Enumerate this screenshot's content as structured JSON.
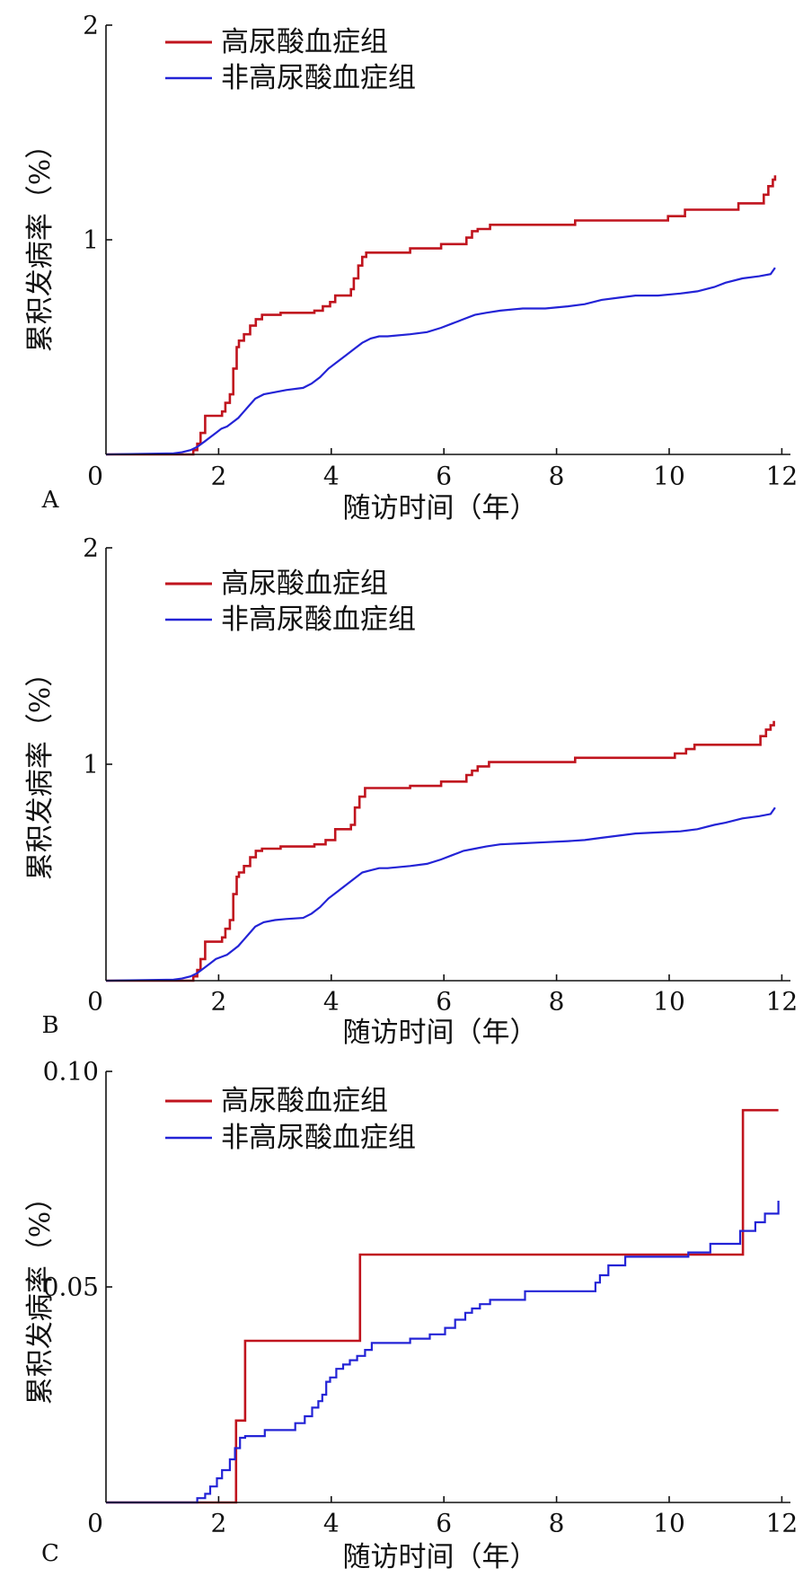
{
  "chart_data": [
    {
      "type": "line",
      "panel_label": "A",
      "title": "",
      "xlabel": "随访时间（年）",
      "ylabel": "累积发病率（%）",
      "xlim": [
        0,
        12
      ],
      "ylim": [
        0,
        2
      ],
      "xticks": [
        0,
        2,
        4,
        6,
        8,
        10,
        12
      ],
      "xtick_labels": [
        "0",
        "2",
        "4",
        "6",
        "8",
        "10",
        "12"
      ],
      "yticks": [
        1,
        2
      ],
      "ytick_labels": [
        "1",
        "2"
      ],
      "grid": false,
      "legend_position": "top-left",
      "series": [
        {
          "name": "高尿酸血症组",
          "color": "#c0141e",
          "interpolation": "step",
          "x": [
            0,
            1.55,
            1.62,
            1.68,
            1.76,
            2.06,
            2.12,
            2.2,
            2.26,
            2.32,
            2.36,
            2.45,
            2.56,
            2.66,
            2.77,
            3.1,
            3.7,
            3.85,
            3.98,
            4.07,
            4.35,
            4.4,
            4.48,
            4.55,
            4.62,
            5.4,
            5.95,
            6.4,
            6.5,
            6.6,
            6.82,
            8.33,
            9.98,
            10.28,
            11.23,
            11.68,
            11.76,
            11.84,
            11.88
          ],
          "y": [
            0,
            0.02,
            0.05,
            0.1,
            0.18,
            0.2,
            0.24,
            0.28,
            0.4,
            0.5,
            0.53,
            0.56,
            0.6,
            0.63,
            0.65,
            0.66,
            0.67,
            0.69,
            0.71,
            0.74,
            0.77,
            0.82,
            0.88,
            0.92,
            0.94,
            0.96,
            0.98,
            1.01,
            1.04,
            1.05,
            1.07,
            1.09,
            1.11,
            1.14,
            1.17,
            1.21,
            1.25,
            1.28,
            1.3
          ]
        },
        {
          "name": "非高尿酸血症组",
          "color": "#2323d6",
          "interpolation": "linear",
          "x": [
            0,
            1.2,
            1.35,
            1.5,
            1.62,
            1.75,
            1.85,
            1.95,
            2.05,
            2.15,
            2.25,
            2.35,
            2.45,
            2.55,
            2.65,
            2.8,
            3.0,
            3.2,
            3.5,
            3.65,
            3.8,
            3.95,
            4.1,
            4.25,
            4.4,
            4.55,
            4.7,
            4.85,
            5.0,
            5.4,
            5.7,
            5.95,
            6.15,
            6.35,
            6.55,
            6.75,
            7.0,
            7.4,
            7.8,
            8.2,
            8.5,
            8.8,
            9.1,
            9.4,
            9.8,
            10.2,
            10.5,
            10.8,
            11.0,
            11.3,
            11.6,
            11.8,
            11.88
          ],
          "y": [
            0,
            0.005,
            0.01,
            0.02,
            0.035,
            0.06,
            0.08,
            0.1,
            0.12,
            0.13,
            0.15,
            0.17,
            0.2,
            0.23,
            0.26,
            0.28,
            0.29,
            0.3,
            0.31,
            0.33,
            0.36,
            0.4,
            0.43,
            0.46,
            0.49,
            0.52,
            0.54,
            0.55,
            0.55,
            0.56,
            0.57,
            0.59,
            0.61,
            0.63,
            0.65,
            0.66,
            0.67,
            0.68,
            0.68,
            0.69,
            0.7,
            0.72,
            0.73,
            0.74,
            0.74,
            0.75,
            0.76,
            0.78,
            0.8,
            0.82,
            0.83,
            0.84,
            0.87
          ]
        }
      ]
    },
    {
      "type": "line",
      "panel_label": "B",
      "title": "",
      "xlabel": "随访时间（年）",
      "ylabel": "累积发病率（%）",
      "xlim": [
        0,
        12
      ],
      "ylim": [
        0,
        2
      ],
      "xticks": [
        0,
        2,
        4,
        6,
        8,
        10,
        12
      ],
      "xtick_labels": [
        "0",
        "2",
        "4",
        "6",
        "8",
        "10",
        "12"
      ],
      "yticks": [
        1,
        2
      ],
      "ytick_labels": [
        "1",
        "2"
      ],
      "grid": false,
      "legend_position": "top-left",
      "series": [
        {
          "name": "高尿酸血症组",
          "color": "#c0141e",
          "interpolation": "step",
          "x": [
            0,
            1.55,
            1.62,
            1.68,
            1.76,
            2.06,
            2.12,
            2.2,
            2.26,
            2.32,
            2.36,
            2.45,
            2.56,
            2.66,
            2.77,
            3.1,
            3.7,
            3.9,
            4.07,
            4.35,
            4.42,
            4.5,
            4.6,
            5.4,
            5.95,
            6.4,
            6.5,
            6.6,
            6.8,
            8.33,
            10.1,
            10.3,
            10.45,
            11.62,
            11.72,
            11.8,
            11.86
          ],
          "y": [
            0,
            0.02,
            0.05,
            0.1,
            0.18,
            0.2,
            0.24,
            0.28,
            0.4,
            0.48,
            0.5,
            0.53,
            0.57,
            0.6,
            0.61,
            0.62,
            0.63,
            0.65,
            0.7,
            0.72,
            0.8,
            0.85,
            0.89,
            0.9,
            0.92,
            0.95,
            0.97,
            0.99,
            1.01,
            1.03,
            1.05,
            1.07,
            1.09,
            1.13,
            1.16,
            1.18,
            1.2
          ]
        },
        {
          "name": "非高尿酸血症组",
          "color": "#2323d6",
          "interpolation": "linear",
          "x": [
            0,
            1.2,
            1.35,
            1.5,
            1.62,
            1.75,
            1.85,
            1.95,
            2.05,
            2.15,
            2.25,
            2.35,
            2.45,
            2.55,
            2.65,
            2.8,
            3.0,
            3.2,
            3.5,
            3.65,
            3.8,
            3.95,
            4.1,
            4.25,
            4.4,
            4.55,
            4.7,
            4.85,
            5.0,
            5.4,
            5.7,
            5.95,
            6.15,
            6.35,
            6.55,
            6.75,
            7.0,
            7.4,
            7.8,
            8.2,
            8.5,
            8.8,
            9.1,
            9.4,
            9.8,
            10.2,
            10.5,
            10.8,
            11.0,
            11.3,
            11.6,
            11.8,
            11.88
          ],
          "y": [
            0,
            0.005,
            0.01,
            0.02,
            0.035,
            0.06,
            0.08,
            0.1,
            0.11,
            0.12,
            0.14,
            0.16,
            0.19,
            0.22,
            0.25,
            0.27,
            0.28,
            0.285,
            0.29,
            0.31,
            0.34,
            0.38,
            0.41,
            0.44,
            0.47,
            0.5,
            0.51,
            0.52,
            0.52,
            0.53,
            0.54,
            0.56,
            0.58,
            0.6,
            0.61,
            0.62,
            0.63,
            0.635,
            0.64,
            0.645,
            0.65,
            0.66,
            0.67,
            0.68,
            0.685,
            0.69,
            0.7,
            0.72,
            0.73,
            0.75,
            0.76,
            0.77,
            0.8
          ]
        }
      ]
    },
    {
      "type": "line",
      "panel_label": "C",
      "title": "",
      "xlabel": "随访时间（年）",
      "ylabel": "累积发病率（%）",
      "xlim": [
        0,
        12
      ],
      "ylim": [
        0,
        0.1
      ],
      "xticks": [
        0,
        2,
        4,
        6,
        8,
        10,
        12
      ],
      "xtick_labels": [
        "0",
        "2",
        "4",
        "6",
        "8",
        "10",
        "12"
      ],
      "yticks": [
        0.05,
        0.1
      ],
      "ytick_labels": [
        "0.05",
        "0.10"
      ],
      "grid": false,
      "legend_position": "top-left",
      "series": [
        {
          "name": "高尿酸血症组",
          "color": "#c0141e",
          "interpolation": "step",
          "x": [
            0,
            2.31,
            2.47,
            4.51,
            11.31,
            11.94
          ],
          "y": [
            0,
            0.019,
            0.0375,
            0.0575,
            0.091,
            0.091
          ]
        },
        {
          "name": "非高尿酸血症组",
          "color": "#2323d6",
          "interpolation": "step",
          "x": [
            0,
            1.62,
            1.76,
            1.85,
            1.97,
            2.06,
            2.2,
            2.29,
            2.38,
            2.47,
            2.82,
            3.36,
            3.53,
            3.66,
            3.77,
            3.84,
            3.91,
            3.98,
            4.09,
            4.21,
            4.33,
            4.46,
            4.6,
            4.72,
            5.4,
            5.75,
            6.02,
            6.2,
            6.38,
            6.5,
            6.64,
            6.82,
            7.44,
            8.69,
            8.77,
            8.92,
            9.22,
            10.34,
            10.73,
            11.26,
            11.53,
            11.7,
            11.94
          ],
          "y": [
            0,
            0.001,
            0.002,
            0.0037,
            0.0056,
            0.0075,
            0.01,
            0.0126,
            0.015,
            0.0154,
            0.0168,
            0.0184,
            0.02,
            0.022,
            0.0235,
            0.025,
            0.028,
            0.029,
            0.031,
            0.032,
            0.033,
            0.034,
            0.0354,
            0.037,
            0.038,
            0.039,
            0.0405,
            0.0424,
            0.044,
            0.045,
            0.046,
            0.047,
            0.049,
            0.051,
            0.0527,
            0.055,
            0.057,
            0.058,
            0.06,
            0.063,
            0.065,
            0.067,
            0.07
          ]
        }
      ]
    }
  ]
}
